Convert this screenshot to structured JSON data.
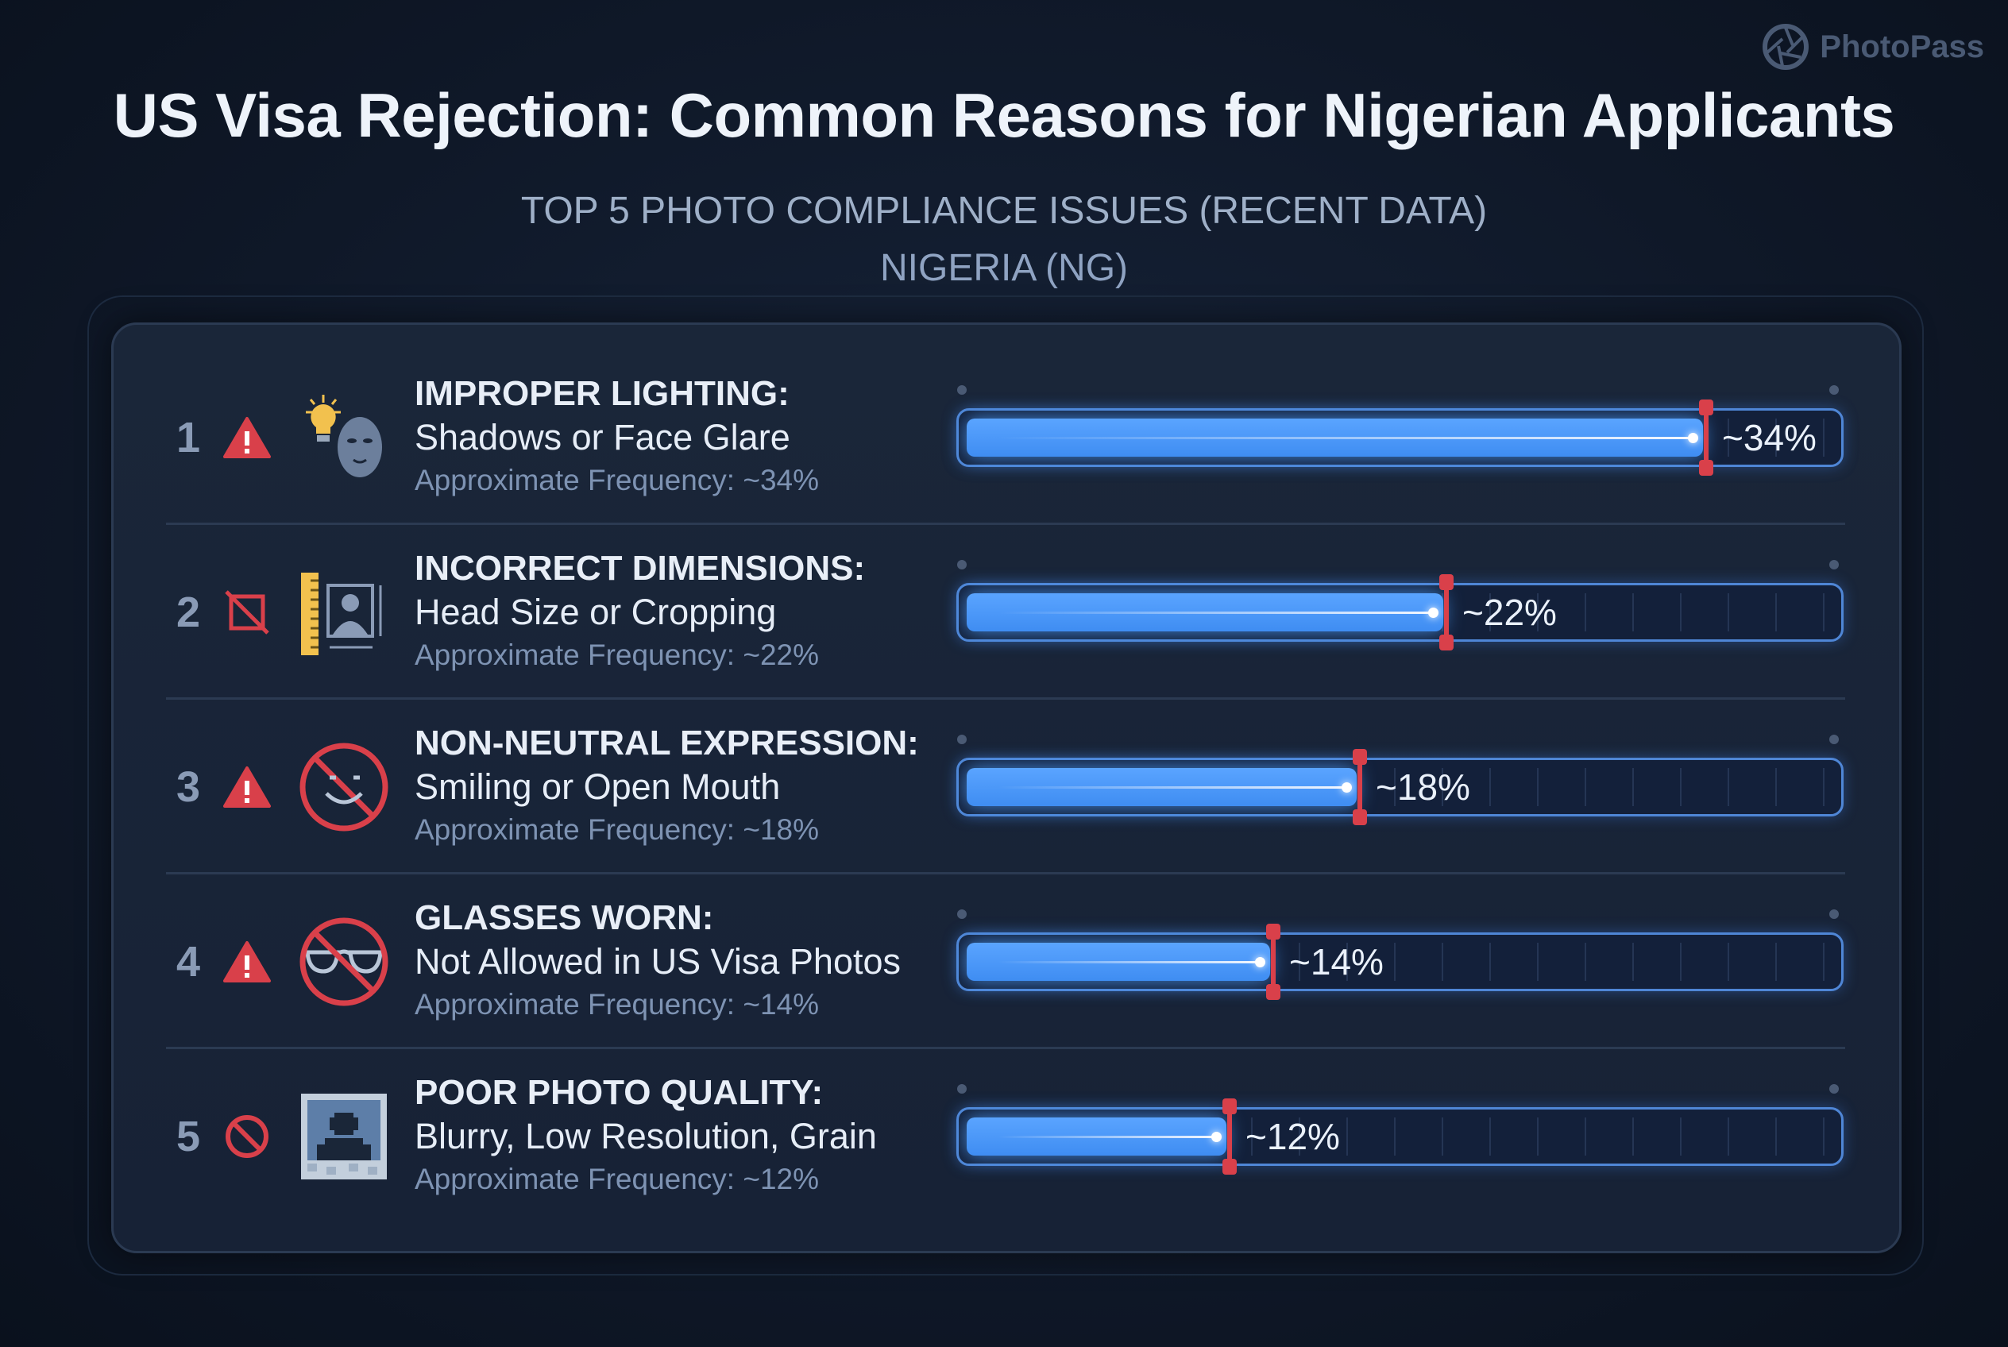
{
  "brand": {
    "name": "PhotoPass",
    "icon": "camera-aperture-icon"
  },
  "header": {
    "title": "US Visa Rejection: Common Reasons for Nigerian Applicants",
    "subtitle": "TOP 5 PHOTO COMPLIANCE ISSUES (RECENT DATA)",
    "region": "NIGERIA (NG)"
  },
  "colors": {
    "accent": "#4f9bff",
    "marker": "#d9404a",
    "background": "#0f1828",
    "panel": "#1a2639"
  },
  "bar_scale_max_percent": 40,
  "items": [
    {
      "rank": "1",
      "status_icon": "warning-triangle-icon",
      "icon": "lightbulb-face-icon",
      "heading": "IMPROPER LIGHTING:",
      "detail": "Shadows or Face Glare",
      "frequency": "Approximate Frequency: ~34%",
      "value_label": "~34%",
      "value": 34
    },
    {
      "rank": "2",
      "status_icon": "crop-off-icon",
      "icon": "ruler-portrait-icon",
      "heading": "INCORRECT DIMENSIONS:",
      "detail": "Head Size or Cropping",
      "frequency": "Approximate Frequency: ~22%",
      "value_label": "~22%",
      "value": 22
    },
    {
      "rank": "3",
      "status_icon": "warning-triangle-icon",
      "icon": "no-smile-icon",
      "heading": "NON-NEUTRAL EXPRESSION:",
      "detail": "Smiling or Open Mouth",
      "frequency": "Approximate Frequency: ~18%",
      "value_label": "~18%",
      "value": 18
    },
    {
      "rank": "4",
      "status_icon": "warning-triangle-icon",
      "icon": "no-glasses-icon",
      "heading": "GLASSES WORN:",
      "detail": "Not Allowed in US Visa Photos",
      "frequency": "Approximate Frequency: ~14%",
      "value_label": "~14%",
      "value": 14
    },
    {
      "rank": "5",
      "status_icon": "prohibited-icon",
      "icon": "pixelated-photo-icon",
      "heading": "POOR PHOTO QUALITY:",
      "detail": "Blurry, Low Resolution, Grain",
      "frequency": "Approximate Frequency: ~12%",
      "value_label": "~12%",
      "value": 12
    }
  ]
}
